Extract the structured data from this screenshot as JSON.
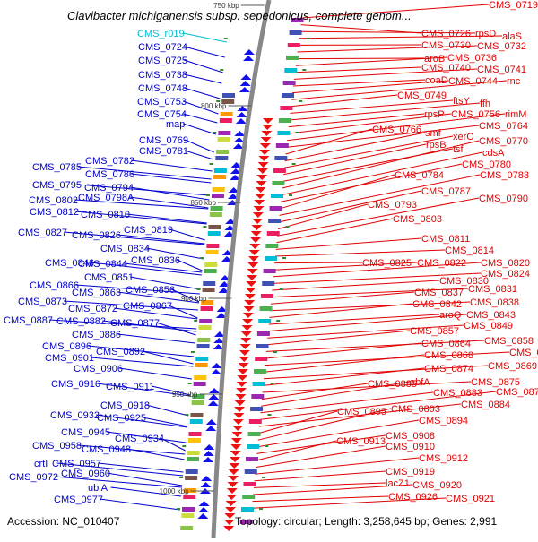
{
  "title": "Clavibacter michiganensis subsp. sepedonicus, complete genom...",
  "accession": "Accession: NC_010407",
  "topology": "Topology: circular; Length: 3,258,645 bp; Genes: 2,991",
  "colors": {
    "left_labels": "#0000cc",
    "right_labels": "#e00000",
    "rna_label": "#00bcd4",
    "backbone": "#888888",
    "ticks": "#555555"
  },
  "scale_ticks": [
    "750 kbp",
    "800 kbp",
    "850 kbp",
    "900 kbp",
    "950 kbp",
    "1000 kbp"
  ],
  "left_labels": [
    {
      "text": "CMS_r019",
      "rna": true
    },
    {
      "text": "CMS_0724"
    },
    {
      "text": "CMS_0725"
    },
    {
      "text": "CMS_0738"
    },
    {
      "text": "CMS_0748"
    },
    {
      "text": "CMS_0753"
    },
    {
      "text": "CMS_0754"
    },
    {
      "text": "map"
    },
    {
      "text": "CMS_0769"
    },
    {
      "text": "CMS_0781"
    },
    {
      "text": "CMS_0782"
    },
    {
      "text": "CMS_0785"
    },
    {
      "text": "CMS_0786"
    },
    {
      "text": "CMS_0795"
    },
    {
      "text": "CMS_0794"
    },
    {
      "text": "CMS_0802"
    },
    {
      "text": "CMS_0798A"
    },
    {
      "text": "CMS_0812"
    },
    {
      "text": "CMS_0810"
    },
    {
      "text": "CMS_0819"
    },
    {
      "text": "CMS_0827"
    },
    {
      "text": "CMS_0826"
    },
    {
      "text": "CMS_0834"
    },
    {
      "text": "CMS_0846"
    },
    {
      "text": "CMS_0844"
    },
    {
      "text": "CMS_0836"
    },
    {
      "text": "CMS_0851"
    },
    {
      "text": "CMS_0866"
    },
    {
      "text": "CMS_0863"
    },
    {
      "text": "CMS_0856"
    },
    {
      "text": "CMS_0873"
    },
    {
      "text": "CMS_0872"
    },
    {
      "text": "CMS_0867"
    },
    {
      "text": "CMS_0887"
    },
    {
      "text": "CMS_0882"
    },
    {
      "text": "CMS_0877"
    },
    {
      "text": "CMS_0886"
    },
    {
      "text": "CMS_0896"
    },
    {
      "text": "CMS_0892"
    },
    {
      "text": "CMS_0901"
    },
    {
      "text": "CMS_0906"
    },
    {
      "text": "CMS_0916"
    },
    {
      "text": "CMS_0911"
    },
    {
      "text": "CMS_0918"
    },
    {
      "text": "CMS_0932"
    },
    {
      "text": "CMS_0925"
    },
    {
      "text": "CMS_0945"
    },
    {
      "text": "CMS_0934"
    },
    {
      "text": "CMS_0958"
    },
    {
      "text": "CMS_0948"
    },
    {
      "text": "crtI"
    },
    {
      "text": "CMS_0957"
    },
    {
      "text": "CMS_0972"
    },
    {
      "text": "CMS_0960"
    },
    {
      "text": "ubiA"
    },
    {
      "text": "CMS_0977"
    }
  ],
  "right_labels": [
    {
      "text": "CMS_0719"
    },
    {
      "text": "CMS_0726"
    },
    {
      "text": "rpsD"
    },
    {
      "text": "alaS"
    },
    {
      "text": "CMS_0730"
    },
    {
      "text": "CMS_0732"
    },
    {
      "text": "aroB"
    },
    {
      "text": "CMS_0736"
    },
    {
      "text": "CMS_0740"
    },
    {
      "text": "CMS_0741"
    },
    {
      "text": "coaD"
    },
    {
      "text": "CMS_0744"
    },
    {
      "text": "rnc"
    },
    {
      "text": "CMS_0749"
    },
    {
      "text": "ftsY"
    },
    {
      "text": "ffh"
    },
    {
      "text": "rpsP"
    },
    {
      "text": "CMS_0756"
    },
    {
      "text": "rimM"
    },
    {
      "text": "CMS_0764"
    },
    {
      "text": "CMS_0766"
    },
    {
      "text": "smf"
    },
    {
      "text": "xerC"
    },
    {
      "text": "rpsB"
    },
    {
      "text": "tsf"
    },
    {
      "text": "CMS_0770"
    },
    {
      "text": "cdsA"
    },
    {
      "text": "CMS_0780"
    },
    {
      "text": "CMS_0784"
    },
    {
      "text": "CMS_0783"
    },
    {
      "text": "CMS_0787"
    },
    {
      "text": "CMS_0793"
    },
    {
      "text": "CMS_0790"
    },
    {
      "text": "CMS_0803"
    },
    {
      "text": "CMS_0811"
    },
    {
      "text": "CMS_0814"
    },
    {
      "text": "CMS_0825"
    },
    {
      "text": "CMS_0822"
    },
    {
      "text": "CMS_0820"
    },
    {
      "text": "CMS_0824"
    },
    {
      "text": "CMS_0830"
    },
    {
      "text": "CMS_0831"
    },
    {
      "text": "CMS_0837"
    },
    {
      "text": "CMS_0838"
    },
    {
      "text": "CMS_0842"
    },
    {
      "text": "aroQ"
    },
    {
      "text": "CMS_0843"
    },
    {
      "text": "CMS_0849"
    },
    {
      "text": "CMS_0857"
    },
    {
      "text": "CMS_0858"
    },
    {
      "text": "CMS_0864"
    },
    {
      "text": "CMS_0862"
    },
    {
      "text": "CMS_0868"
    },
    {
      "text": "CMS_0869"
    },
    {
      "text": "CMS_0874"
    },
    {
      "text": "CMS_0875"
    },
    {
      "text": "CMS_0885"
    },
    {
      "text": "abfA"
    },
    {
      "text": "CMS_0883"
    },
    {
      "text": "CMS_0878"
    },
    {
      "text": "CMS_0884"
    },
    {
      "text": "CMS_0895"
    },
    {
      "text": "CMS_0893"
    },
    {
      "text": "CMS_0894"
    },
    {
      "text": "CMS_0908"
    },
    {
      "text": "CMS_0913"
    },
    {
      "text": "CMS_0910"
    },
    {
      "text": "CMS_0912"
    },
    {
      "text": "CMS_0919"
    },
    {
      "text": "lacZ1"
    },
    {
      "text": "CMS_0920"
    },
    {
      "text": "CMS_0926"
    },
    {
      "text": "CMS_0921"
    }
  ]
}
